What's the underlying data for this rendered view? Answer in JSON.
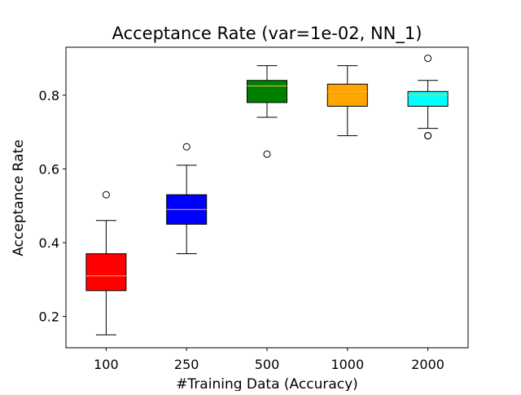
{
  "chart_data": {
    "type": "box",
    "title": "Acceptance Rate (var=1e-02, NN_1)",
    "xlabel": "#Training Data (Accuracy)",
    "ylabel": "Acceptance Rate",
    "categories": [
      "100",
      "250",
      "500",
      "1000",
      "2000"
    ],
    "ylim": [
      0.115,
      0.93
    ],
    "yticks": [
      0.2,
      0.4,
      0.6,
      0.8
    ],
    "ytick_labels": [
      "0.2",
      "0.4",
      "0.6",
      "0.8"
    ],
    "grid": false,
    "legend": "none",
    "median_color": "#f5b942",
    "boxes": [
      {
        "category": "100",
        "whisker_low": 0.15,
        "q1": 0.27,
        "median": 0.31,
        "q3": 0.37,
        "whisker_high": 0.46,
        "outliers": [
          0.53
        ],
        "color": "#ff0000"
      },
      {
        "category": "250",
        "whisker_low": 0.37,
        "q1": 0.45,
        "median": 0.49,
        "q3": 0.53,
        "whisker_high": 0.61,
        "outliers": [
          0.66
        ],
        "color": "#0000ff"
      },
      {
        "category": "500",
        "whisker_low": 0.74,
        "q1": 0.78,
        "median": 0.825,
        "q3": 0.84,
        "whisker_high": 0.88,
        "outliers": [
          0.64
        ],
        "color": "#008000"
      },
      {
        "category": "1000",
        "whisker_low": 0.69,
        "q1": 0.77,
        "median": 0.81,
        "q3": 0.83,
        "whisker_high": 0.88,
        "outliers": [],
        "color": "#ffa500"
      },
      {
        "category": "2000",
        "whisker_low": 0.71,
        "q1": 0.77,
        "median": 0.8,
        "q3": 0.81,
        "whisker_high": 0.84,
        "outliers": [
          0.69,
          0.69,
          0.9
        ],
        "color": "#00ffff"
      }
    ]
  }
}
